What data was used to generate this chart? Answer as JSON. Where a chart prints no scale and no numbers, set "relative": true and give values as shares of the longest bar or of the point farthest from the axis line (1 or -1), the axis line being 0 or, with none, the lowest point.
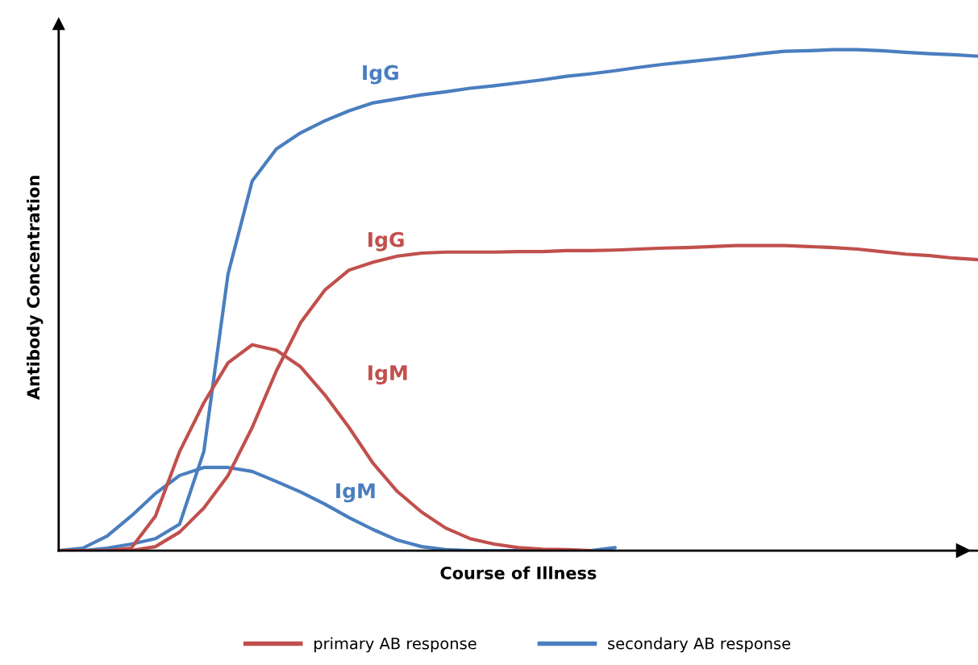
{
  "chart_data": {
    "type": "line",
    "relative": true,
    "tick_labels": false,
    "legend": "bottom",
    "xlabel": "Course of Illness",
    "ylabel": "Antibody Concentration",
    "categories": [
      null,
      null,
      null,
      null,
      null,
      null,
      null,
      null,
      null,
      null,
      null,
      null,
      null,
      null,
      null,
      null,
      null,
      null,
      null,
      null,
      null,
      null,
      null,
      null,
      null,
      null,
      null,
      null,
      null,
      null,
      null,
      null,
      null,
      null,
      null,
      null,
      null,
      null,
      null
    ],
    "series": [
      {
        "name": "secondary AB response",
        "color": "#4a7ebf",
        "values": [
          0,
          0,
          0.005,
          0.013,
          0.024,
          0.053,
          0.198,
          0.552,
          0.738,
          0.802,
          0.834,
          0.858,
          0.878,
          0.894,
          0.902,
          0.91,
          0.916,
          0.923,
          0.928,
          0.934,
          0.94,
          0.947,
          0.952,
          0.958,
          0.965,
          0.971,
          0.976,
          0.981,
          0.986,
          0.992,
          0.997,
          0.998,
          1,
          1,
          0.998,
          0.995,
          0.992,
          0.99,
          0.987
        ]
      },
      {
        "color": "#4a7ebf",
        "values": [
          0,
          0.005,
          0.029,
          0.069,
          0.114,
          0.15,
          0.166,
          0.166,
          0.158,
          0.138,
          0.117,
          0.093,
          0.066,
          0.042,
          0.021,
          0.008,
          0.002,
          0,
          0,
          0,
          0,
          0,
          0,
          0.006,
          null,
          null,
          null,
          null,
          null,
          null,
          null,
          null,
          null,
          null,
          null,
          null,
          null,
          null,
          null
        ]
      },
      {
        "name": "primary AB response",
        "color": "#c0504d",
        "values": [
          0,
          0,
          0,
          0,
          0.008,
          0.037,
          0.085,
          0.15,
          0.246,
          0.359,
          0.455,
          0.52,
          0.56,
          0.576,
          0.588,
          0.594,
          0.596,
          0.596,
          0.596,
          0.597,
          0.597,
          0.599,
          0.599,
          0.6,
          0.602,
          0.604,
          0.605,
          0.607,
          0.609,
          0.609,
          0.609,
          0.607,
          0.605,
          0.602,
          0.597,
          0.592,
          0.589,
          0.584,
          0.581
        ]
      },
      {
        "color": "#c0504d",
        "values": [
          0,
          0,
          0,
          0.005,
          0.069,
          0.198,
          0.295,
          0.375,
          0.411,
          0.4,
          0.367,
          0.311,
          0.246,
          0.174,
          0.118,
          0.077,
          0.045,
          0.024,
          0.013,
          0.006,
          0.003,
          0.002,
          0,
          null,
          null,
          null,
          null,
          null,
          null,
          null,
          null,
          null,
          null,
          null,
          null,
          null,
          null,
          null,
          null
        ]
      }
    ],
    "annotations": [
      "IgG",
      "IgM",
      "IgG",
      "IgM"
    ]
  }
}
